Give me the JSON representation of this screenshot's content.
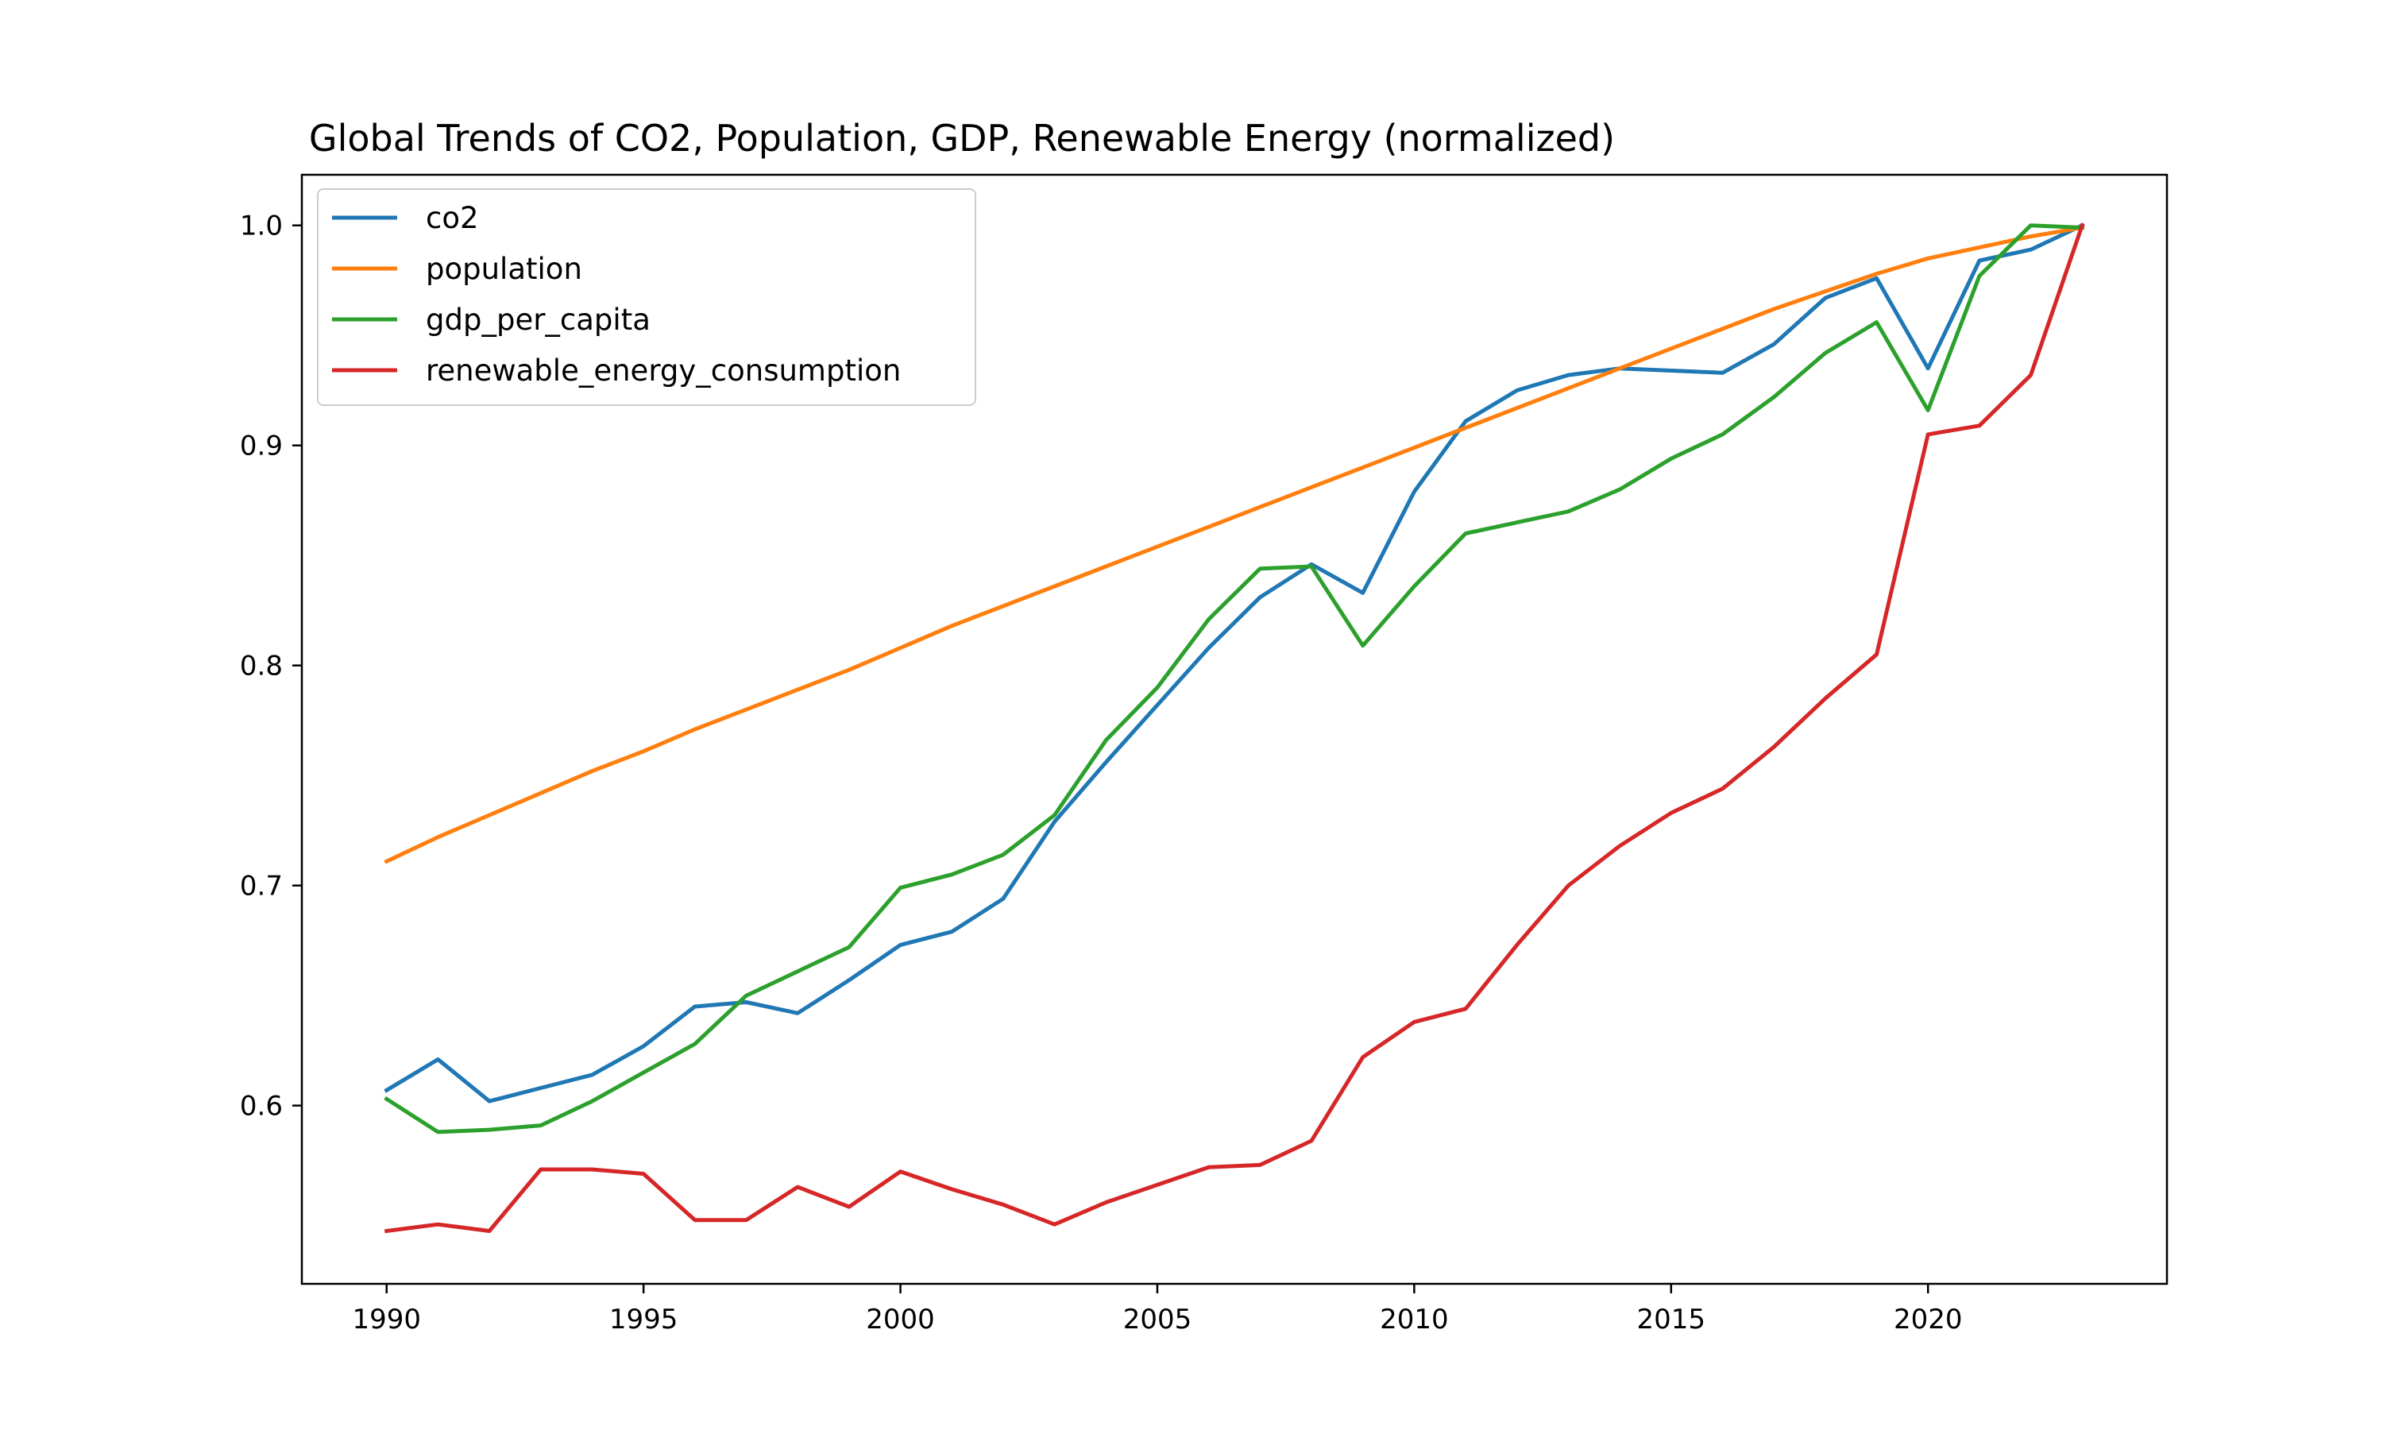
{
  "chart_data": {
    "type": "line",
    "title": "Global Trends of CO2, Population, GDP, Renewable Energy (normalized)",
    "xlabel": "",
    "ylabel": "",
    "x": [
      1990,
      1991,
      1992,
      1993,
      1994,
      1995,
      1996,
      1997,
      1998,
      1999,
      2000,
      2001,
      2002,
      2003,
      2004,
      2005,
      2006,
      2007,
      2008,
      2009,
      2010,
      2011,
      2012,
      2013,
      2014,
      2015,
      2016,
      2017,
      2018,
      2019,
      2020,
      2021,
      2022,
      2023
    ],
    "xlim": [
      1988.35,
      2024.65
    ],
    "ylim": [
      0.519,
      1.023
    ],
    "xticks": [
      1990,
      1995,
      2000,
      2005,
      2010,
      2015,
      2020
    ],
    "yticks": [
      "0.6",
      "0.7",
      "0.8",
      "0.9",
      "1.0"
    ],
    "grid": false,
    "legend_position": "upper left",
    "series": [
      {
        "name": "co2",
        "color": "#1f77b4",
        "values": [
          0.607,
          0.621,
          0.602,
          0.608,
          0.614,
          0.627,
          0.645,
          0.647,
          0.642,
          0.657,
          0.673,
          0.679,
          0.694,
          0.729,
          0.756,
          0.782,
          0.808,
          0.831,
          0.846,
          0.833,
          0.879,
          0.911,
          0.925,
          0.932,
          0.935,
          0.934,
          0.933,
          0.946,
          0.967,
          0.976,
          0.935,
          0.984,
          0.989,
          1.0
        ]
      },
      {
        "name": "population",
        "color": "#ff7f0e",
        "values": [
          0.711,
          0.722,
          0.732,
          0.742,
          0.752,
          0.761,
          0.771,
          0.78,
          0.789,
          0.798,
          0.808,
          0.818,
          0.827,
          0.836,
          0.845,
          0.854,
          0.863,
          0.872,
          0.881,
          0.89,
          0.899,
          0.908,
          0.917,
          0.926,
          0.935,
          0.944,
          0.953,
          0.962,
          0.97,
          0.978,
          0.985,
          0.99,
          0.995,
          0.999
        ]
      },
      {
        "name": "gdp_per_capita",
        "color": "#2ca02c",
        "values": [
          0.603,
          0.588,
          0.589,
          0.591,
          0.602,
          0.615,
          0.628,
          0.65,
          0.661,
          0.672,
          0.699,
          0.705,
          0.714,
          0.732,
          0.766,
          0.79,
          0.821,
          0.844,
          0.845,
          0.809,
          0.836,
          0.86,
          0.865,
          0.87,
          0.88,
          0.894,
          0.905,
          0.922,
          0.942,
          0.956,
          0.916,
          0.977,
          1.0,
          0.999
        ]
      },
      {
        "name": "renewable_energy_consumption",
        "color": "#d62728",
        "values": [
          0.543,
          0.546,
          0.543,
          0.571,
          0.571,
          0.569,
          0.548,
          0.548,
          0.563,
          0.554,
          0.57,
          0.562,
          0.555,
          0.546,
          0.556,
          0.564,
          0.572,
          0.573,
          0.584,
          0.622,
          0.638,
          0.644,
          0.673,
          0.7,
          0.718,
          0.733,
          0.744,
          0.763,
          0.785,
          0.805,
          0.905,
          0.909,
          0.932,
          1.0
        ]
      }
    ]
  }
}
